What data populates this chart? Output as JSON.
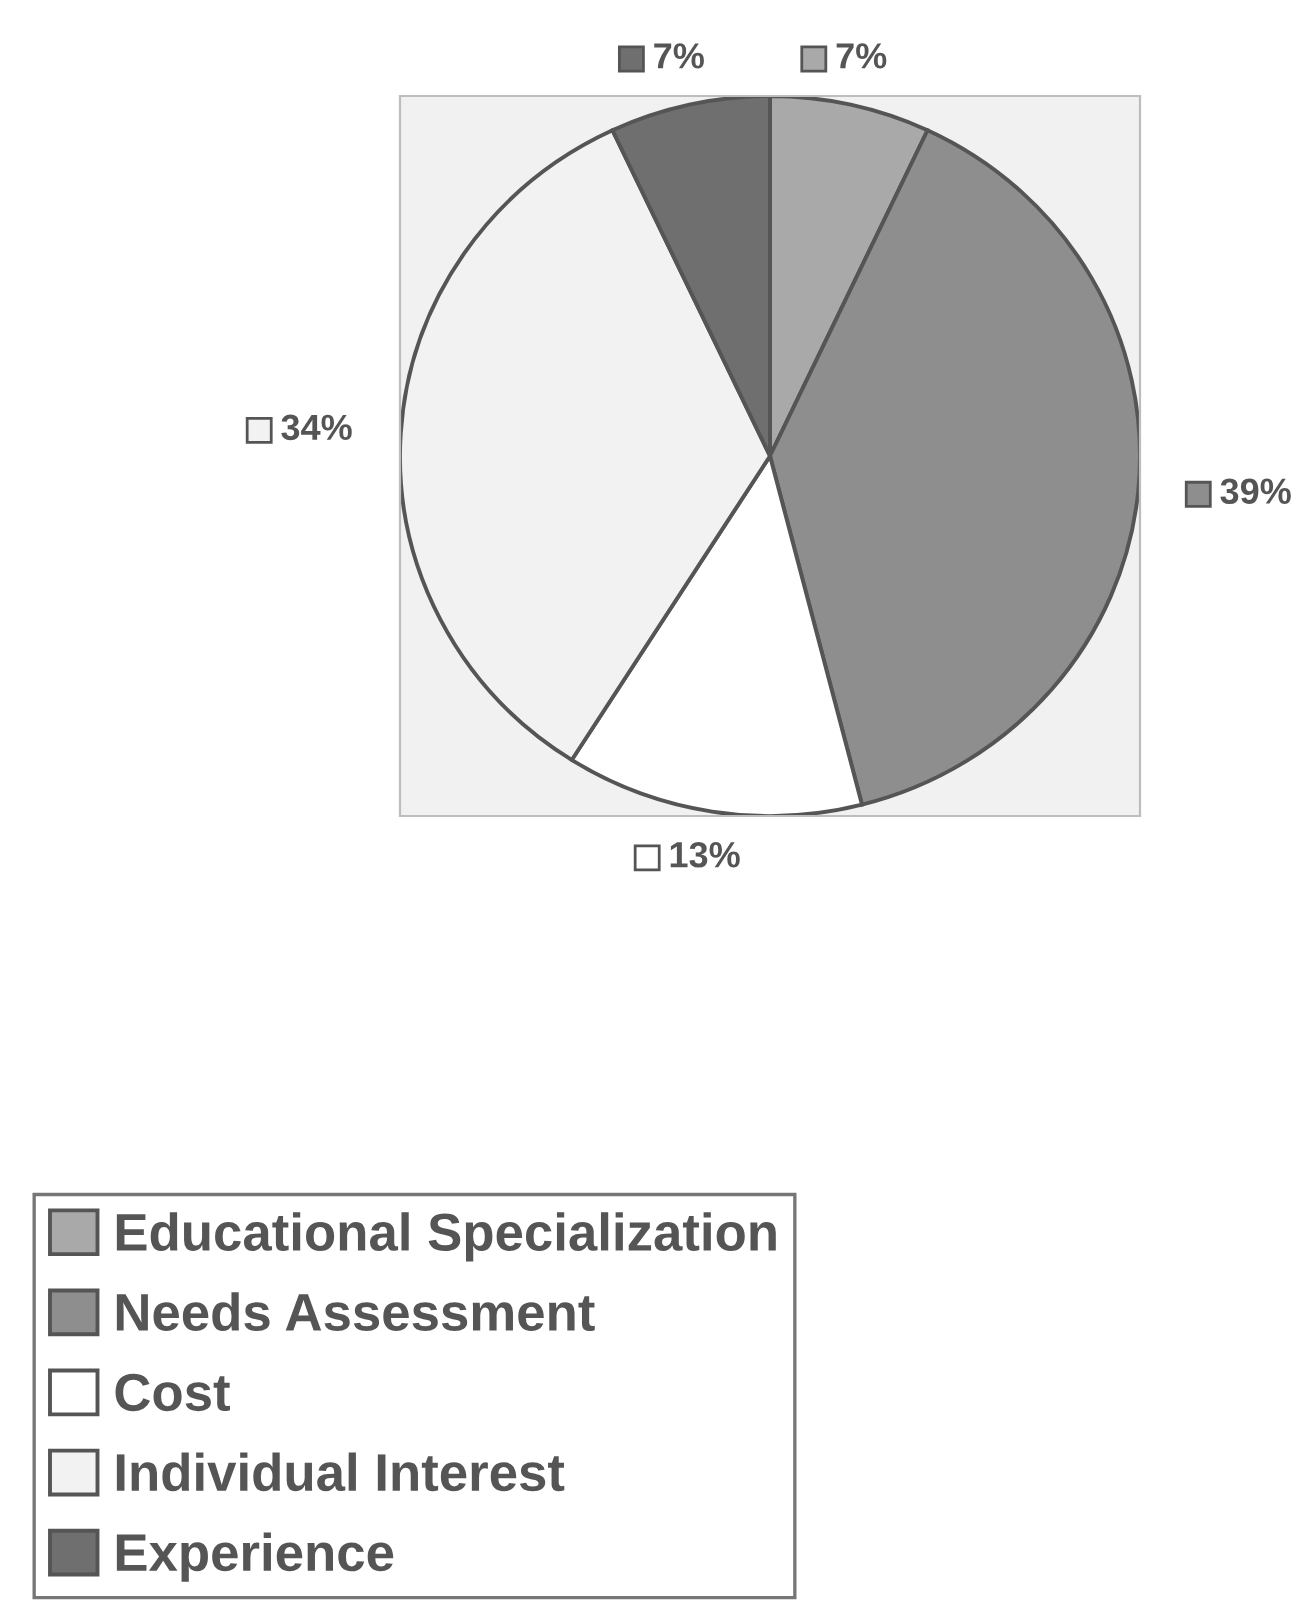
{
  "chart_data": {
    "type": "pie",
    "categories": [
      "Educational Specialization",
      "Needs Assessment",
      "Cost",
      "Individual Interest",
      "Experience"
    ],
    "values": [
      7,
      39,
      13,
      34,
      7
    ],
    "colors": [
      "#a9a9a9",
      "#8e8e8e",
      "#ffffff",
      "#f2f2f2",
      "#6f6f6f"
    ],
    "value_labels": [
      "7%",
      "39%",
      "13%",
      "34%",
      "7%"
    ],
    "legend": "bottom"
  }
}
